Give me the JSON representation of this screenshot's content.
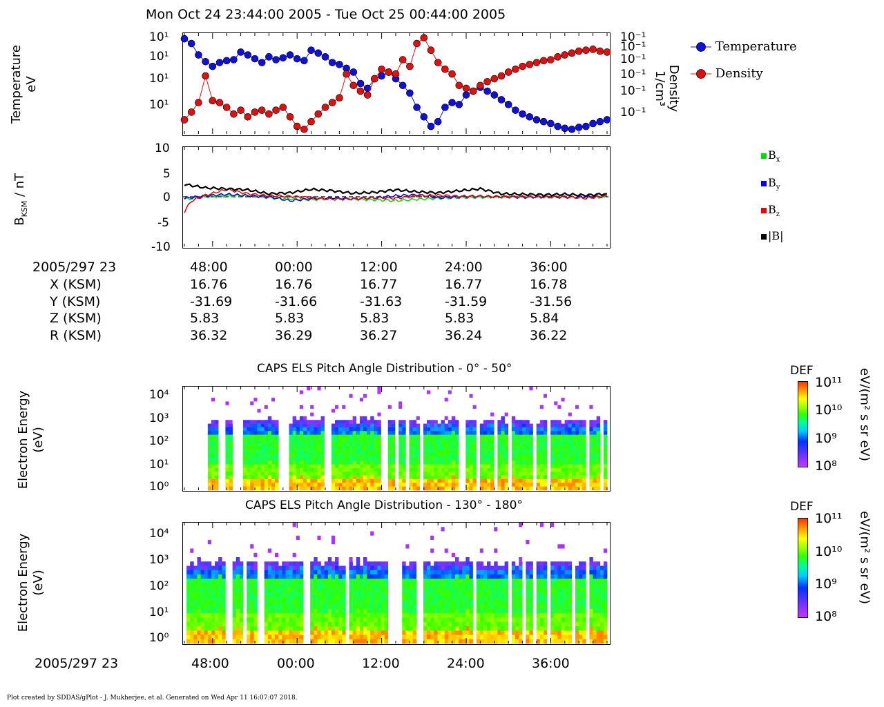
{
  "header": {
    "title": "Mon Oct 24 23:44:00 2005 - Tue Oct 25 00:44:00 2005"
  },
  "colors": {
    "temperature": "#1010dd",
    "density": "#e01010",
    "bx": "#00dd00",
    "by": "#0000ee",
    "bz": "#ee0000",
    "btot": "#000000"
  },
  "chart_data": [
    {
      "type": "scatter",
      "panel": "plasma",
      "ylabel": [
        "Temperature",
        "eV"
      ],
      "y2label": [
        "Density",
        "1/cm³"
      ],
      "ytick_labels": [
        "10¹",
        "10¹",
        "10¹",
        "10¹"
      ],
      "y2tick_labels": [
        "10⁻¹",
        "10⁻¹",
        "10⁻¹",
        "10⁻¹",
        "10⁻¹",
        "10⁻¹"
      ],
      "x_minutes_range": [
        0,
        60
      ],
      "y_range": [
        0,
        1
      ],
      "series": [
        {
          "name": "Temperature",
          "x": [
            0,
            1,
            2,
            3,
            4,
            5,
            6,
            7,
            8,
            9,
            10,
            11,
            12,
            13,
            14,
            15,
            16,
            17,
            18,
            19,
            20,
            21,
            22,
            23,
            24,
            25,
            26,
            27,
            28,
            29,
            30,
            31,
            32,
            33,
            34,
            35,
            36,
            37,
            38,
            39,
            40,
            41,
            42,
            43,
            44,
            45,
            46,
            47,
            48,
            49,
            50,
            51,
            52,
            53,
            54,
            55,
            56,
            57,
            58,
            59,
            60
          ],
          "y": [
            0.97,
            0.92,
            0.8,
            0.73,
            0.68,
            0.72,
            0.74,
            0.75,
            0.83,
            0.8,
            0.76,
            0.72,
            0.78,
            0.75,
            0.77,
            0.8,
            0.76,
            0.74,
            0.85,
            0.82,
            0.78,
            0.72,
            0.7,
            0.66,
            0.62,
            0.5,
            0.45,
            0.55,
            0.58,
            0.62,
            0.55,
            0.48,
            0.4,
            0.25,
            0.15,
            0.05,
            0.1,
            0.25,
            0.3,
            0.28,
            0.38,
            0.42,
            0.46,
            0.42,
            0.38,
            0.33,
            0.28,
            0.22,
            0.18,
            0.15,
            0.12,
            0.1,
            0.08,
            0.05,
            0.03,
            0.02,
            0.04,
            0.05,
            0.08,
            0.1,
            0.12
          ]
        },
        {
          "name": "Density",
          "x": [
            0,
            1,
            2,
            3,
            4,
            5,
            6,
            7,
            8,
            9,
            10,
            11,
            12,
            13,
            14,
            15,
            16,
            17,
            18,
            19,
            20,
            21,
            22,
            23,
            24,
            25,
            26,
            27,
            28,
            29,
            30,
            31,
            32,
            33,
            34,
            35,
            36,
            37,
            38,
            39,
            40,
            41,
            42,
            43,
            44,
            45,
            46,
            47,
            48,
            49,
            50,
            51,
            52,
            53,
            54,
            55,
            56,
            57,
            58,
            59,
            60
          ],
          "y": [
            0.12,
            0.2,
            0.3,
            0.58,
            0.32,
            0.3,
            0.25,
            0.18,
            0.22,
            0.15,
            0.2,
            0.22,
            0.18,
            0.22,
            0.25,
            0.15,
            0.05,
            0.02,
            0.1,
            0.18,
            0.25,
            0.3,
            0.35,
            0.6,
            0.48,
            0.42,
            0.38,
            0.55,
            0.65,
            0.62,
            0.6,
            0.75,
            0.68,
            0.92,
            0.98,
            0.85,
            0.72,
            0.65,
            0.6,
            0.48,
            0.45,
            0.42,
            0.48,
            0.52,
            0.55,
            0.58,
            0.62,
            0.65,
            0.68,
            0.7,
            0.72,
            0.74,
            0.75,
            0.78,
            0.8,
            0.82,
            0.84,
            0.85,
            0.86,
            0.84,
            0.83
          ]
        }
      ],
      "legend": [
        "Temperature",
        "Density"
      ]
    },
    {
      "type": "line",
      "panel": "magnetic",
      "ylabel": "B",
      "ylabel_sub": "KSM",
      "ylabel_suffix": " / nT",
      "ylim": [
        -10,
        10
      ],
      "yticks": [
        "10",
        "5",
        "0",
        "-5",
        "-10"
      ],
      "x_minutes_range": [
        0,
        60
      ],
      "series": [
        {
          "name": "B",
          "sub": "x",
          "points": [
            [
              0,
              -0.5
            ],
            [
              3,
              0.0
            ],
            [
              6,
              0.2
            ],
            [
              9,
              0.3
            ],
            [
              12,
              -0.2
            ],
            [
              15,
              -0.4
            ],
            [
              18,
              -0.6
            ],
            [
              21,
              -0.3
            ],
            [
              24,
              -0.5
            ],
            [
              27,
              -0.6
            ],
            [
              30,
              -0.8
            ],
            [
              33,
              -0.5
            ],
            [
              36,
              -0.3
            ],
            [
              39,
              -0.2
            ],
            [
              42,
              -0.1
            ],
            [
              45,
              0.0
            ],
            [
              48,
              0.0
            ],
            [
              51,
              -0.1
            ],
            [
              54,
              0.0
            ],
            [
              57,
              0.0
            ],
            [
              60,
              -0.1
            ]
          ]
        },
        {
          "name": "B",
          "sub": "y",
          "points": [
            [
              0,
              -0.3
            ],
            [
              3,
              0.2
            ],
            [
              6,
              0.5
            ],
            [
              9,
              0.2
            ],
            [
              12,
              0.0
            ],
            [
              15,
              -0.8
            ],
            [
              18,
              -0.4
            ],
            [
              21,
              -0.2
            ],
            [
              24,
              -0.4
            ],
            [
              27,
              -0.2
            ],
            [
              30,
              0.2
            ],
            [
              33,
              0.4
            ],
            [
              36,
              -0.2
            ],
            [
              39,
              0.0
            ],
            [
              42,
              0.1
            ],
            [
              45,
              0.0
            ],
            [
              48,
              -0.1
            ],
            [
              51,
              0.0
            ],
            [
              54,
              -0.1
            ],
            [
              57,
              0.0
            ],
            [
              60,
              0.1
            ]
          ]
        },
        {
          "name": "B",
          "sub": "z",
          "points": [
            [
              0,
              -3.0
            ],
            [
              1,
              -0.8
            ],
            [
              3,
              0.3
            ],
            [
              6,
              1.5
            ],
            [
              9,
              0.6
            ],
            [
              12,
              0.2
            ],
            [
              15,
              0.1
            ],
            [
              18,
              -0.2
            ],
            [
              21,
              -0.5
            ],
            [
              24,
              -0.4
            ],
            [
              27,
              -0.2
            ],
            [
              30,
              -0.3
            ],
            [
              33,
              0.2
            ],
            [
              36,
              0.3
            ],
            [
              39,
              0.1
            ],
            [
              42,
              0.1
            ],
            [
              45,
              0.0
            ],
            [
              48,
              0.0
            ],
            [
              51,
              0.0
            ],
            [
              54,
              0.0
            ],
            [
              57,
              -0.3
            ],
            [
              60,
              0.2
            ]
          ]
        },
        {
          "name": "|B|",
          "sub": "",
          "points": [
            [
              0,
              2.5
            ],
            [
              3,
              1.8
            ],
            [
              6,
              1.6
            ],
            [
              9,
              1.4
            ],
            [
              12,
              0.6
            ],
            [
              15,
              0.8
            ],
            [
              18,
              1.5
            ],
            [
              21,
              1.2
            ],
            [
              24,
              0.7
            ],
            [
              27,
              0.9
            ],
            [
              30,
              1.4
            ],
            [
              33,
              1.0
            ],
            [
              36,
              0.8
            ],
            [
              39,
              1.2
            ],
            [
              42,
              1.6
            ],
            [
              45,
              0.6
            ],
            [
              48,
              0.5
            ],
            [
              51,
              0.4
            ],
            [
              54,
              0.5
            ],
            [
              57,
              0.3
            ],
            [
              60,
              0.6
            ]
          ]
        }
      ]
    },
    {
      "type": "heatmap",
      "panel": "pad1",
      "title": "CAPS ELS Pitch Angle Distribution - 0° - 50°",
      "ylabel": [
        "Electron Energy",
        "(eV)"
      ],
      "yticks": [
        "10⁴",
        "10³",
        "10²",
        "10¹",
        "10⁰"
      ],
      "colorbar": {
        "label": "DEF",
        "units": "eV/(m² s sr eV)",
        "ticks": [
          "10¹¹",
          "10¹⁰",
          "10⁹",
          "10⁸"
        ]
      }
    },
    {
      "type": "heatmap",
      "panel": "pad2",
      "title": "CAPS ELS Pitch Angle Distribution - 130° - 180°",
      "ylabel": [
        "Electron Energy",
        "(eV)"
      ],
      "yticks": [
        "10⁴",
        "10³",
        "10²",
        "10¹",
        "10⁰"
      ],
      "colorbar": {
        "label": "DEF",
        "units": "eV/(m² s sr eV)",
        "ticks": [
          "10¹¹",
          "10¹⁰",
          "10⁹",
          "10⁸"
        ]
      }
    }
  ],
  "ephemeris": {
    "row_labels": [
      "2005/297 23",
      "X (KSM)",
      "Y (KSM)",
      "Z (KSM)",
      "R (KSM)"
    ],
    "columns": [
      {
        "time": "48:00",
        "x": "16.76",
        "y": "-31.69",
        "z": "5.83",
        "r": "36.32"
      },
      {
        "time": "00:00",
        "x": "16.76",
        "y": "-31.66",
        "z": "5.83",
        "r": "36.29"
      },
      {
        "time": "12:00",
        "x": "16.77",
        "y": "-31.63",
        "z": "5.83",
        "r": "36.27"
      },
      {
        "time": "24:00",
        "x": "16.77",
        "y": "-31.59",
        "z": "5.83",
        "r": "36.24"
      },
      {
        "time": "36:00",
        "x": "16.78",
        "y": "-31.56",
        "z": "5.84",
        "r": "36.22"
      }
    ]
  },
  "bottom_axis": {
    "date_label": "2005/297 23",
    "ticks": [
      "48:00",
      "00:00",
      "12:00",
      "24:00",
      "36:00"
    ]
  },
  "footer": {
    "text": "Plot created by SDDAS/gPlot - J. Mukherjee, et al.  Generated on Wed Apr 11 16:07:07 2018."
  }
}
